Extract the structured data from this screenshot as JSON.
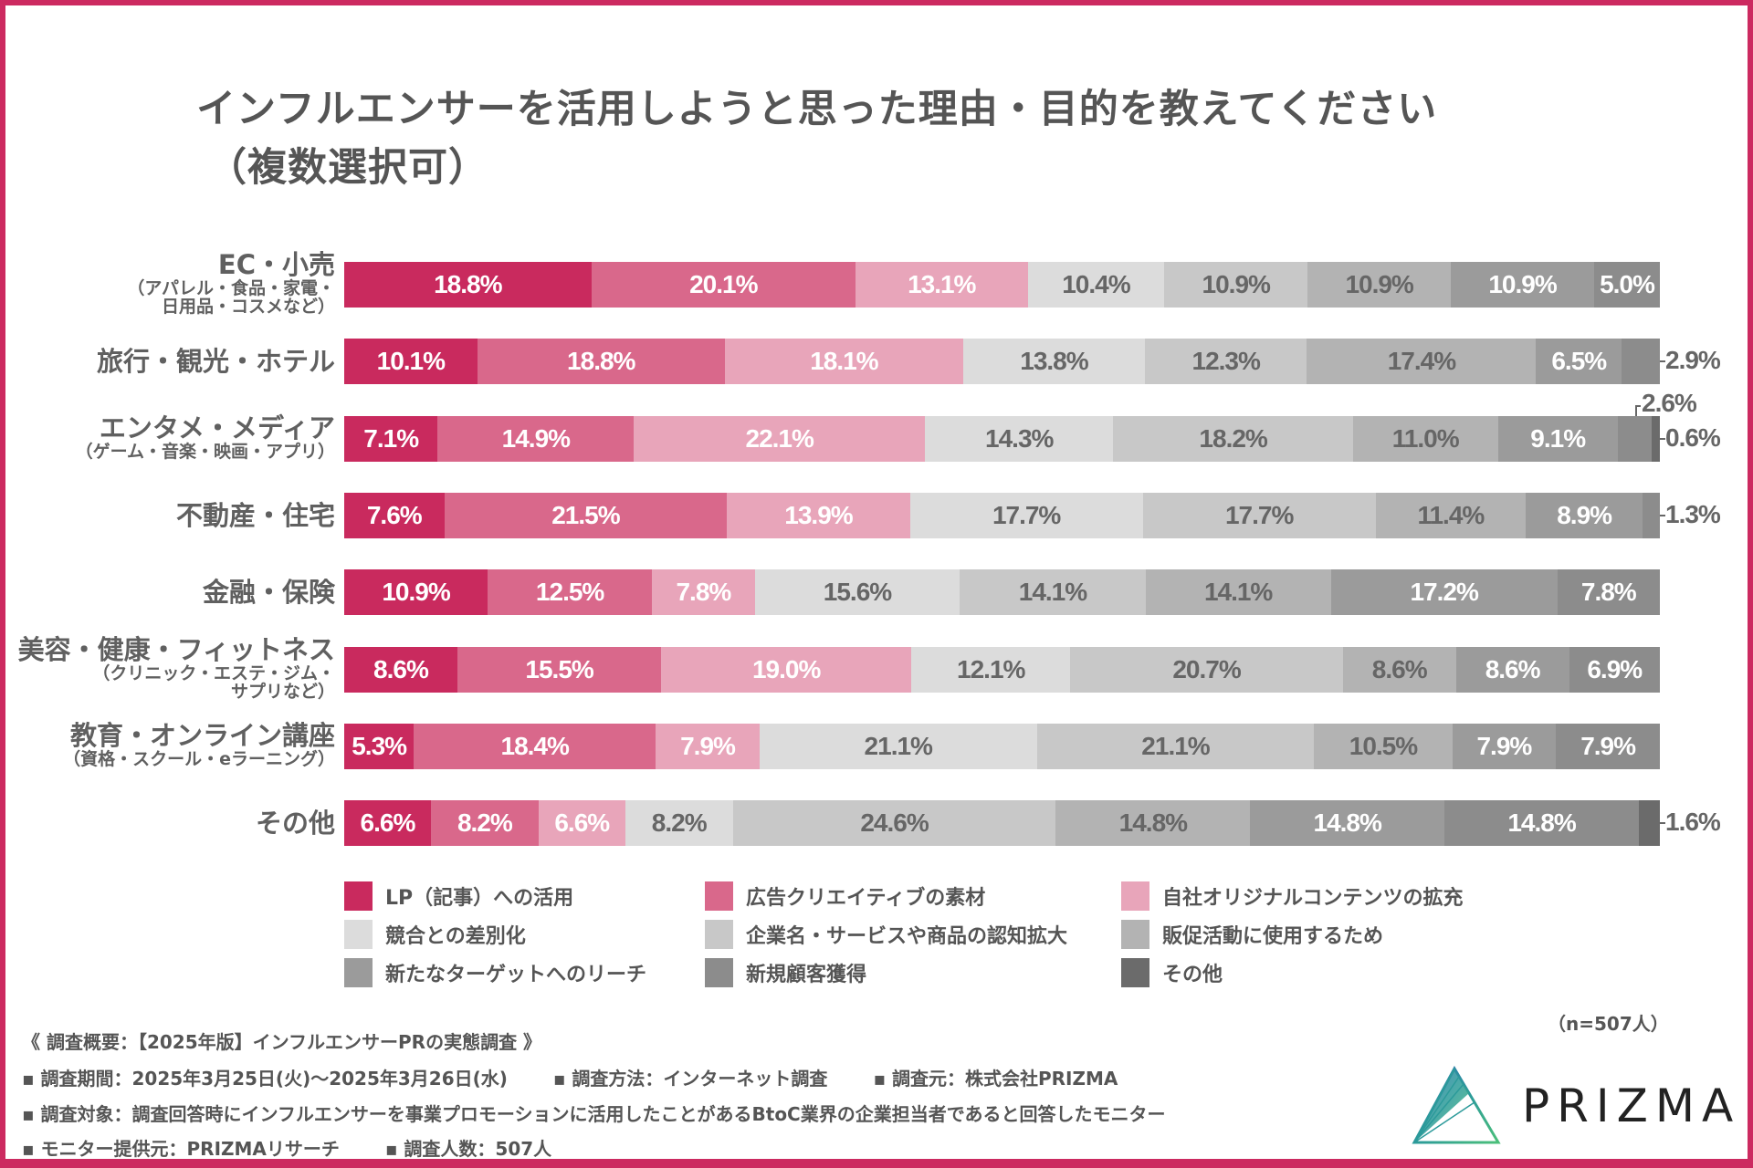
{
  "title": {
    "line1": "インフルエンサーを活用しようと思った理由・目的を教えてください",
    "line2": "（複数選択可）"
  },
  "colors": {
    "frame": "#cc2a60",
    "series": [
      "#c92a5e",
      "#d9688b",
      "#e8a5ba",
      "#dcdcdc",
      "#c8c8c8",
      "#b3b3b3",
      "#9b9b9b",
      "#8c8c8c",
      "#6b6b6b"
    ],
    "label_on_dark": "#ffffff",
    "label_on_light": "#666666"
  },
  "chart_data": {
    "type": "bar",
    "orientation": "horizontal-stacked-100",
    "title": "インフルエンサーを活用しようと思った理由・目的を教えてください（複数選択可）",
    "xlabel": "",
    "ylabel": "",
    "xlim": [
      0,
      100
    ],
    "grid": false,
    "legend_position": "bottom",
    "unit": "%",
    "categories": [
      {
        "main": "EC・小売",
        "sub": [
          "（アパレル・食品・家電・",
          "日用品・コスメなど）"
        ]
      },
      {
        "main": "旅行・観光・ホテル",
        "sub": []
      },
      {
        "main": "エンタメ・メディア",
        "sub": [
          "（ゲーム・音楽・映画・アプリ）"
        ]
      },
      {
        "main": "不動産・住宅",
        "sub": []
      },
      {
        "main": "金融・保険",
        "sub": []
      },
      {
        "main": "美容・健康・フィットネス",
        "sub": [
          "（クリニック・エステ・ジム・",
          "サプリなど）"
        ]
      },
      {
        "main": "教育・オンライン講座",
        "sub": [
          "（資格・スクール・eラーニング）"
        ]
      },
      {
        "main": "その他",
        "sub": []
      }
    ],
    "series": [
      {
        "name": "LP（記事）への活用",
        "values": [
          18.8,
          10.1,
          7.1,
          7.6,
          10.9,
          8.6,
          5.3,
          6.6
        ]
      },
      {
        "name": "広告クリエイティブの素材",
        "values": [
          20.1,
          18.8,
          14.9,
          21.5,
          12.5,
          15.5,
          18.4,
          8.2
        ]
      },
      {
        "name": "自社オリジナルコンテンツの拡充",
        "values": [
          13.1,
          18.1,
          22.1,
          13.9,
          7.8,
          19.0,
          7.9,
          6.6
        ]
      },
      {
        "name": "競合との差別化",
        "values": [
          10.4,
          13.8,
          14.3,
          17.7,
          15.6,
          12.1,
          21.1,
          8.2
        ]
      },
      {
        "name": "企業名・サービスや商品の認知拡大",
        "values": [
          10.9,
          12.3,
          18.2,
          17.7,
          14.1,
          20.7,
          21.1,
          24.6
        ]
      },
      {
        "name": "販促活動に使用するため",
        "values": [
          10.9,
          17.4,
          11.0,
          11.4,
          14.1,
          8.6,
          10.5,
          14.8
        ]
      },
      {
        "name": "新たなターゲットへのリーチ",
        "values": [
          10.9,
          6.5,
          9.1,
          8.9,
          17.2,
          8.6,
          7.9,
          14.8
        ]
      },
      {
        "name": "新規顧客獲得",
        "values": [
          5.0,
          2.9,
          2.6,
          1.3,
          7.8,
          6.9,
          7.9,
          14.8
        ]
      },
      {
        "name": "その他",
        "values": [
          0,
          0,
          0.6,
          0,
          0,
          0,
          0,
          1.6
        ]
      }
    ],
    "legend_order": [
      [
        0,
        1,
        2
      ],
      [
        3,
        4,
        5
      ],
      [
        6,
        7,
        8
      ]
    ]
  },
  "sample_size": "（n=507人）",
  "footer": {
    "heading": "《 調査概要：【2025年版】インフルエンサーPRの実態調査 》",
    "period": "▪ 調査期間：2025年3月25日(火)〜2025年3月26日(水)",
    "method": "▪ 調査方法：インターネット調査",
    "organizer": "▪ 調査元：株式会社PRIZMA",
    "target": "▪ 調査対象：調査回答時にインフルエンサーを事業プロモーションに活用したことがあるBtoC業界の企業担当者であると回答したモニター",
    "provider": "▪ モニター提供元：PRIZMAリサーチ",
    "respondents": "▪ 調査人数：507人"
  },
  "logo": {
    "name": "PRIZMA",
    "icon": "prism-triangle-icon"
  }
}
